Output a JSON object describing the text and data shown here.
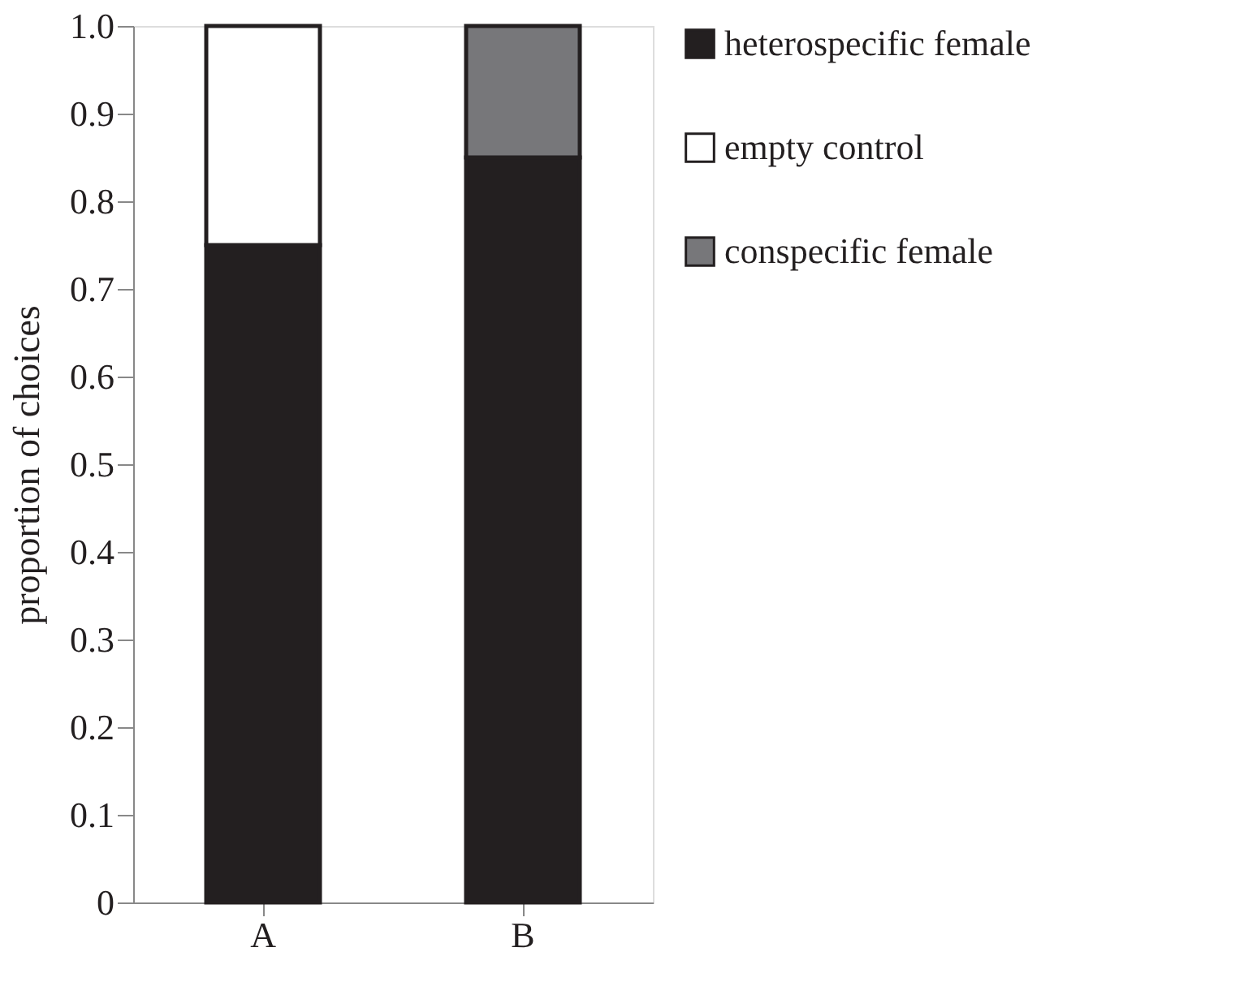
{
  "chart_data": {
    "type": "bar",
    "stacked": true,
    "ylabel": "proportion of choices",
    "categories": [
      "A",
      "B"
    ],
    "series": [
      {
        "name": "heterospecific female",
        "color": "#231f20",
        "values": [
          0.75,
          0.85
        ]
      },
      {
        "name": "empty control",
        "color": "#ffffff",
        "values": [
          0.25,
          null
        ]
      },
      {
        "name": "conspecific female",
        "color": "#77777a",
        "values": [
          null,
          0.15
        ]
      }
    ],
    "ylim": [
      0,
      1
    ],
    "yticks": [
      0,
      0.1,
      0.2,
      0.3,
      0.4,
      0.5,
      0.6,
      0.7,
      0.8,
      0.9,
      {
        "value": 1,
        "label": "1.0"
      }
    ],
    "grid": false,
    "legend": "right"
  }
}
